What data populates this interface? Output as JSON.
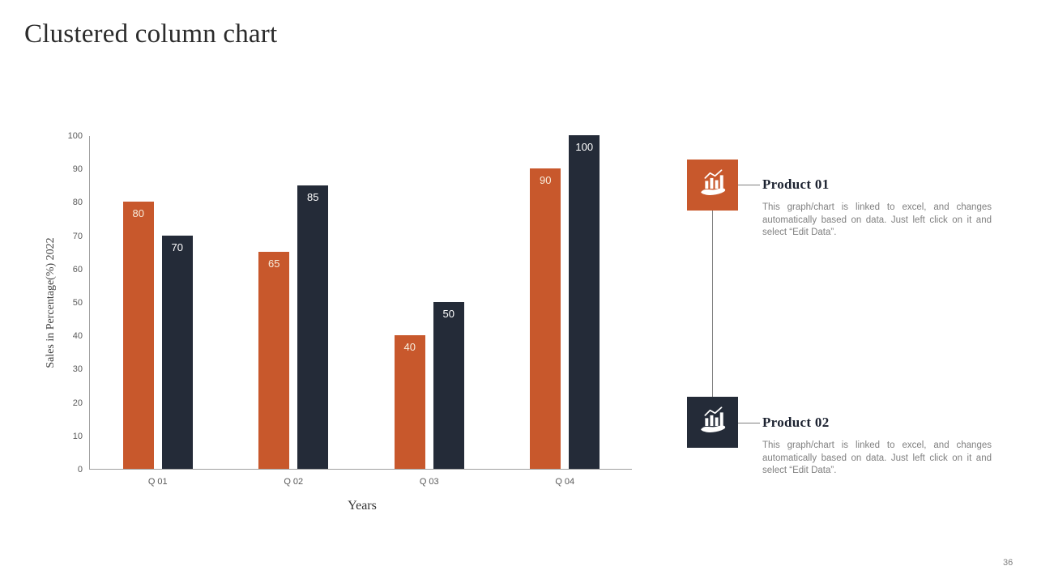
{
  "page": {
    "title": "Clustered column chart",
    "page_number": "36"
  },
  "theme": {
    "accent_orange": "#C8582C",
    "accent_dark_navy": "#242B38",
    "axis_gray": "#A0A0A0",
    "tick_text_gray": "#595959",
    "body_text_gray": "#808080"
  },
  "chart_data": {
    "type": "bar",
    "title": "",
    "categories": [
      "Q 01",
      "Q 02",
      "Q 03",
      "Q 04"
    ],
    "series": [
      {
        "name": "Product 01",
        "color": "#C8582C",
        "label_color": "#F8EDDC",
        "values": [
          80,
          65,
          40,
          90
        ]
      },
      {
        "name": "Product 02",
        "color": "#242B38",
        "label_color": "#FFFFFF",
        "values": [
          70,
          85,
          50,
          100
        ]
      }
    ],
    "xlabel": "Years",
    "ylabel": "Sales in Percentage(%) 2022",
    "ylim": [
      0,
      100
    ],
    "ytick_step": 10,
    "grid": false,
    "legend_position": "none",
    "data_labels": true
  },
  "callouts": [
    {
      "heading": "Product 01",
      "icon": "hand-holding-chart-icon",
      "color": "#C8582C",
      "description": "This graph/chart is linked to excel, and changes automatically based on data. Just left click on it and select “Edit Data”."
    },
    {
      "heading": "Product 02",
      "icon": "hand-holding-chart-icon",
      "color": "#242B38",
      "description": "This graph/chart is linked to excel, and changes automatically based on data. Just left click on it and select “Edit Data”."
    }
  ]
}
